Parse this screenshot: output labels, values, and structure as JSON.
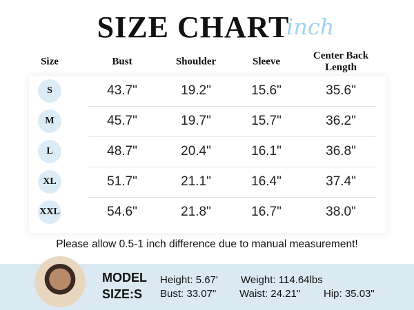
{
  "header": {
    "title": "SIZE CHART",
    "unit": "inch"
  },
  "table": {
    "columns": [
      "Size",
      "Bust",
      "Shoulder",
      "Sleeve",
      "Center Back Length"
    ],
    "rows": [
      [
        "S",
        "43.7\"",
        "19.2\"",
        "15.6\"",
        "35.6\""
      ],
      [
        "M",
        "45.7\"",
        "19.7\"",
        "15.7\"",
        "36.2\""
      ],
      [
        "L",
        "48.7\"",
        "20.4\"",
        "16.1\"",
        "36.8\""
      ],
      [
        "XL",
        "51.7\"",
        "21.1\"",
        "16.4\"",
        "37.4\""
      ],
      [
        "XXL",
        "54.6\"",
        "21.8\"",
        "16.7\"",
        "38.0\""
      ]
    ]
  },
  "note": "Please allow 0.5-1 inch difference due to manual measurement!",
  "model": {
    "label": [
      "MODEL",
      "SIZE:S"
    ],
    "measurements": [
      "Height: 5.67'",
      "Weight: 114.64lbs",
      "Bust: 33.07\"",
      "Waist: 24.21\"",
      "Hip: 35.03\""
    ]
  }
}
